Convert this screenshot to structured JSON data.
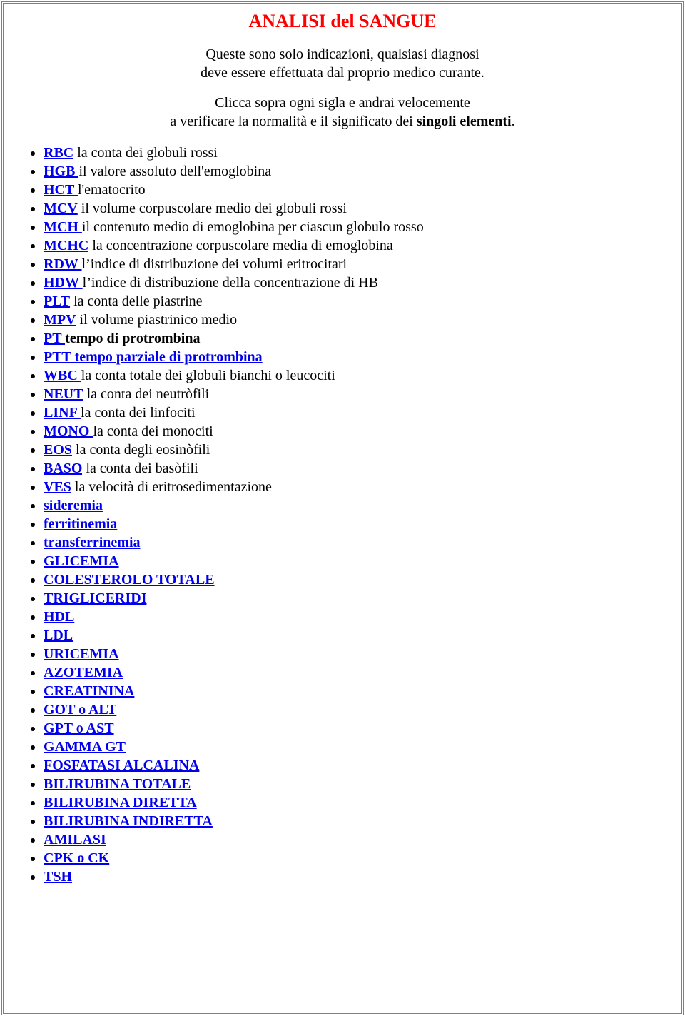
{
  "colors": {
    "title": "#ff0000",
    "link": "#0000ee",
    "text": "#000000",
    "background": "#ffffff",
    "border": "#808080"
  },
  "title": "ANALISI del SANGUE",
  "intro_line1": "Queste sono solo indicazioni, qualsiasi diagnosi",
  "intro_line2": "deve essere effettuata dal proprio medico curante.",
  "intro2_line1": "Clicca sopra ogni sigla e andrai velocemente",
  "intro2_line2a": "a verificare la normalità e il significato dei ",
  "intro2_line2b": "singoli elementi",
  "intro2_line2c": ".",
  "items": [
    {
      "link": "RBC",
      "desc": " la conta dei globuli rossi",
      "bold": false
    },
    {
      "link": "HGB ",
      "desc": "il valore assoluto dell'emoglobina",
      "bold": false
    },
    {
      "link": "HCT ",
      "desc": "l'ematocrito",
      "bold": false
    },
    {
      "link": "MCV",
      "desc": " il volume corpuscolare medio dei globuli rossi",
      "bold": false
    },
    {
      "link": "MCH ",
      "desc": "il contenuto medio di emoglobina per ciascun globulo rosso",
      "bold": false
    },
    {
      "link": "MCHC",
      "desc": " la concentrazione corpuscolare media di emoglobina",
      "bold": false
    },
    {
      "link": "RDW ",
      "desc": "l’indice di distribuzione dei volumi eritrocitari",
      "bold": false
    },
    {
      "link": "HDW ",
      "desc": "l’indice di distribuzione della concentrazione di HB",
      "bold": false
    },
    {
      "link": "PLT",
      "desc": " la conta delle piastrine",
      "bold": false
    },
    {
      "link": "MPV",
      "desc": " il volume piastrinico medio",
      "bold": false
    },
    {
      "link": "PT ",
      "desc": "tempo di protrombina",
      "bold": true
    },
    {
      "link": "PTT tempo parziale di protrombina",
      "desc": "",
      "bold": false
    },
    {
      "link": "WBC ",
      "desc": "la conta totale dei globuli bianchi o leucociti",
      "bold": false
    },
    {
      "link": "NEUT",
      "desc": " la conta dei neutròfili",
      "bold": false
    },
    {
      "link": "LINF ",
      "desc": "la conta dei linfociti",
      "bold": false
    },
    {
      "link": "MONO ",
      "desc": "la conta dei monociti",
      "bold": false
    },
    {
      "link": "EOS",
      "desc": " la conta degli eosinòfili",
      "bold": false
    },
    {
      "link": "BASO",
      "desc": " la conta dei basòfili",
      "bold": false
    },
    {
      "link": "VES",
      "desc": " la velocità di eritrosedimentazione",
      "bold": false
    },
    {
      "link": "sideremia",
      "desc": "",
      "bold": false
    },
    {
      "link": "ferritinemia",
      "desc": "",
      "bold": false
    },
    {
      "link": "transferrinemia",
      "desc": "",
      "bold": false
    },
    {
      "link": "GLICEMIA",
      "desc": "",
      "bold": false
    },
    {
      "link": "COLESTEROLO TOTALE",
      "desc": "",
      "bold": false
    },
    {
      "link": "TRIGLICERIDI",
      "desc": "",
      "bold": false
    },
    {
      "link": "HDL",
      "desc": "",
      "bold": false
    },
    {
      "link": "LDL",
      "desc": "",
      "bold": false
    },
    {
      "link": "URICEMIA",
      "desc": "",
      "bold": false
    },
    {
      "link": "AZOTEMIA",
      "desc": "",
      "bold": false
    },
    {
      "link": "CREATININA",
      "desc": "",
      "bold": false
    },
    {
      "link": "GOT o ALT",
      "desc": "",
      "bold": false
    },
    {
      "link": "GPT o AST",
      "desc": "",
      "bold": false
    },
    {
      "link": "GAMMA GT",
      "desc": "",
      "bold": false
    },
    {
      "link": "FOSFATASI ALCALINA",
      "desc": "",
      "bold": false
    },
    {
      "link": "BILIRUBINA TOTALE",
      "desc": "",
      "bold": false
    },
    {
      "link": "BILIRUBINA DIRETTA",
      "desc": "",
      "bold": false
    },
    {
      "link": "BILIRUBINA INDIRETTA",
      "desc": "",
      "bold": false
    },
    {
      "link": "AMILASI",
      "desc": "",
      "bold": false
    },
    {
      "link": "CPK o CK",
      "desc": "",
      "bold": false
    },
    {
      "link": "TSH",
      "desc": "",
      "bold": false
    }
  ]
}
